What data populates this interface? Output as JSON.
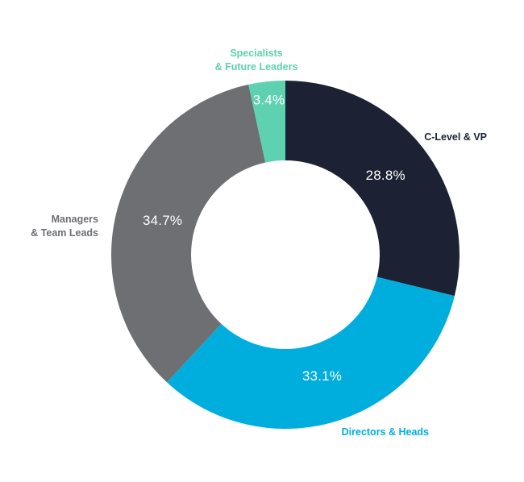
{
  "chart_data": {
    "type": "pie",
    "variant": "donut",
    "categories": [
      "C-Level & VP",
      "Directors & Heads",
      "Managers & Team Leads",
      "Specialists & Future Leaders"
    ],
    "values": [
      28.8,
      33.1,
      34.7,
      3.4
    ],
    "value_labels": [
      "28.8%",
      "33.1%",
      "34.7%",
      "3.4%"
    ],
    "label_lines": [
      [
        "C-Level & VP"
      ],
      [
        "Directors & Heads"
      ],
      [
        "Managers",
        "& Team Leads"
      ],
      [
        "Specialists",
        "& Future Leaders"
      ]
    ],
    "colors": [
      "#1c2233",
      "#00aedd",
      "#6d6f73",
      "#5ed1b0"
    ],
    "label_colors": [
      "#1c2233",
      "#00aedd",
      "#6d6f73",
      "#5ed1b0"
    ],
    "start": "top, clockwise",
    "legend": "none"
  }
}
